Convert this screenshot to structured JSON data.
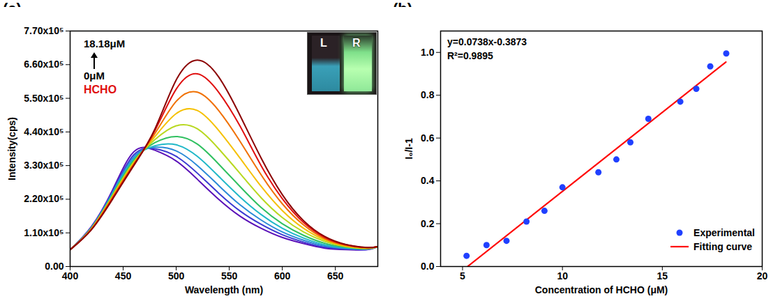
{
  "chart_data": [
    {
      "panel_label": "(a)",
      "type": "line",
      "x_label": "Wavelength (nm)",
      "y_label": "Intensity(cps)",
      "x": [
        400,
        420,
        440,
        460,
        480,
        500,
        520,
        540,
        560,
        580,
        600,
        620,
        640,
        660,
        680,
        690
      ],
      "series": [
        {
          "color": "#5a10b8",
          "values": [
            55000,
            130000,
            250000,
            375000,
            380000,
            345000,
            285000,
            220000,
            165000,
            125000,
            95000,
            75000,
            60000,
            55000,
            55000,
            65000
          ]
        },
        {
          "color": "#3b3bd2",
          "values": [
            55000,
            128000,
            245000,
            365000,
            385000,
            360000,
            305000,
            240000,
            182000,
            138000,
            104000,
            80000,
            63000,
            57000,
            56000,
            65000
          ]
        },
        {
          "color": "#2a8ad8",
          "values": [
            55000,
            127000,
            242000,
            358000,
            390000,
            378000,
            330000,
            265000,
            202000,
            152000,
            113000,
            86000,
            67000,
            59000,
            57000,
            65000
          ]
        },
        {
          "color": "#20b8c8",
          "values": [
            55000,
            126000,
            238000,
            352000,
            395000,
            398000,
            360000,
            295000,
            228000,
            170000,
            125000,
            93000,
            71000,
            61000,
            58000,
            65000
          ]
        },
        {
          "color": "#30c060",
          "values": [
            55000,
            125000,
            235000,
            347000,
            405000,
            425000,
            400000,
            335000,
            262000,
            193000,
            140000,
            102000,
            76000,
            63000,
            58000,
            65000
          ]
        },
        {
          "color": "#b8d820",
          "values": [
            55000,
            124000,
            232000,
            342000,
            415000,
            460000,
            450000,
            385000,
            305000,
            225000,
            160000,
            113000,
            82000,
            65000,
            59000,
            65000
          ]
        },
        {
          "color": "#f5c000",
          "values": [
            55000,
            123000,
            229000,
            338000,
            425000,
            500000,
            510000,
            445000,
            355000,
            262000,
            183000,
            125000,
            87000,
            67000,
            60000,
            65000
          ]
        },
        {
          "color": "#f07000",
          "values": [
            55000,
            122000,
            226000,
            335000,
            435000,
            540000,
            570000,
            510000,
            410000,
            300000,
            205000,
            136000,
            91000,
            69000,
            61000,
            65000
          ]
        },
        {
          "color": "#e01010",
          "values": [
            55000,
            121000,
            223000,
            332000,
            445000,
            580000,
            630000,
            570000,
            460000,
            330000,
            222000,
            144000,
            95000,
            71000,
            62000,
            65000
          ]
        },
        {
          "color": "#8b0000",
          "values": [
            55000,
            120000,
            220000,
            330000,
            450000,
            610000,
            675000,
            620000,
            495000,
            355000,
            235000,
            150000,
            98000,
            72000,
            62000,
            65000
          ]
        }
      ],
      "xlim": [
        400,
        690
      ],
      "xticks": [
        400,
        450,
        500,
        550,
        600,
        650
      ],
      "ylim": [
        0,
        770000
      ],
      "yticks": [
        {
          "value": 0,
          "label": "0.00"
        },
        {
          "value": 110000,
          "label": "1.10x10⁵"
        },
        {
          "value": 220000,
          "label": "2.20x10⁵"
        },
        {
          "value": 330000,
          "label": "3.30x10⁵"
        },
        {
          "value": 440000,
          "label": "4.40x10⁵"
        },
        {
          "value": 550000,
          "label": "5.50x10⁵"
        },
        {
          "value": 660000,
          "label": "6.60x10⁵"
        },
        {
          "value": 770000,
          "label": "7.70x10⁵"
        }
      ],
      "annotations": [
        "18.18μM",
        "0μM",
        "HCHO"
      ],
      "inset_labels": [
        "L",
        "R"
      ]
    },
    {
      "panel_label": "(b)",
      "type": "scatter",
      "x_label": "Concentration of HCHO (μM)",
      "y_label": "I₀/I-1",
      "series": [
        {
          "name": "Experimental",
          "type": "scatter",
          "marker": "circle",
          "color": "#2040ff",
          "x": [
            5.2,
            6.2,
            7.2,
            8.2,
            9.1,
            10.0,
            11.8,
            12.7,
            13.4,
            14.3,
            15.9,
            16.7,
            17.4,
            18.2
          ],
          "values": [
            0.05,
            0.1,
            0.12,
            0.21,
            0.26,
            0.37,
            0.44,
            0.5,
            0.58,
            0.69,
            0.77,
            0.83,
            0.935,
            0.995
          ]
        },
        {
          "name": "Fitting curve",
          "type": "line",
          "color": "#ff0000",
          "x": [
            5.25,
            18.18
          ],
          "values": [
            0,
            0.955
          ]
        }
      ],
      "xlim": [
        3.9,
        20
      ],
      "xticks": [
        5,
        10,
        15,
        20
      ],
      "ylim": [
        0,
        1.1
      ],
      "yticks": [
        {
          "value": 0,
          "label": "0.0"
        },
        {
          "value": 0.2,
          "label": "0.2"
        },
        {
          "value": 0.4,
          "label": "0.4"
        },
        {
          "value": 0.6,
          "label": "0.6"
        },
        {
          "value": 0.8,
          "label": "0.8"
        },
        {
          "value": 1.0,
          "label": "1.0"
        }
      ],
      "annotations": [
        "y=0.0738x-0.3873",
        "R²=0.9895"
      ],
      "legend": "bottom-right"
    }
  ]
}
